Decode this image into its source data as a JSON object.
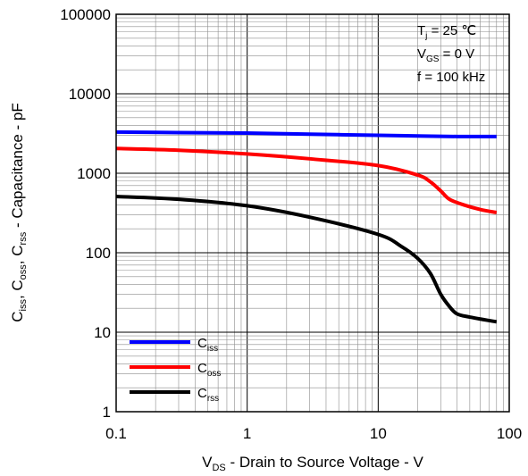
{
  "chart_data": {
    "type": "line",
    "x_scale": "log",
    "y_scale": "log",
    "xlim": [
      0.1,
      100
    ],
    "ylim": [
      1,
      100000
    ],
    "grid": true,
    "legend_position": "bottom-left",
    "x_ticks": [
      "0.1",
      "1",
      "10",
      "100"
    ],
    "y_ticks": [
      "1",
      "10",
      "100",
      "1000",
      "10000",
      "100000"
    ],
    "xlabel": {
      "main": "V",
      "sub": "DS",
      "rest": " - Drain to Source Voltage - V"
    },
    "ylabel": {
      "parts": [
        {
          "main": "C",
          "sub": "iss"
        },
        {
          "main": ",  C",
          "sub": "oss"
        },
        {
          "main": ",  C",
          "sub": "rss"
        },
        {
          "main": " - Capacitance - pF",
          "sub": ""
        }
      ]
    },
    "conditions": [
      {
        "main": "T",
        "sub": "j",
        "rest": " = 25 ℃"
      },
      {
        "main": "V",
        "sub": "GS",
        "rest": " = 0 V"
      },
      {
        "main": "f = 100 kHz",
        "sub": "",
        "rest": ""
      }
    ],
    "series": [
      {
        "name": "Ciss",
        "label_main": "C",
        "label_sub": "iss",
        "color": "#0000ff",
        "points": [
          [
            0.1,
            3300
          ],
          [
            0.3,
            3250
          ],
          [
            1,
            3200
          ],
          [
            3,
            3100
          ],
          [
            10,
            3000
          ],
          [
            20,
            2950
          ],
          [
            40,
            2900
          ],
          [
            80,
            2900
          ]
        ]
      },
      {
        "name": "Coss",
        "label_main": "C",
        "label_sub": "oss",
        "color": "#ff0000",
        "points": [
          [
            0.1,
            2050
          ],
          [
            0.3,
            1950
          ],
          [
            1,
            1750
          ],
          [
            3,
            1520
          ],
          [
            10,
            1250
          ],
          [
            20,
            950
          ],
          [
            25,
            780
          ],
          [
            30,
            600
          ],
          [
            35,
            470
          ],
          [
            45,
            400
          ],
          [
            60,
            350
          ],
          [
            80,
            320
          ]
        ]
      },
      {
        "name": "Crss",
        "label_main": "C",
        "label_sub": "rss",
        "color": "#000000",
        "points": [
          [
            0.1,
            510
          ],
          [
            0.3,
            470
          ],
          [
            1,
            390
          ],
          [
            3,
            280
          ],
          [
            10,
            170
          ],
          [
            15,
            120
          ],
          [
            20,
            85
          ],
          [
            25,
            55
          ],
          [
            30,
            30
          ],
          [
            35,
            21
          ],
          [
            40,
            17
          ],
          [
            50,
            15.5
          ],
          [
            80,
            13.5
          ]
        ]
      }
    ]
  }
}
